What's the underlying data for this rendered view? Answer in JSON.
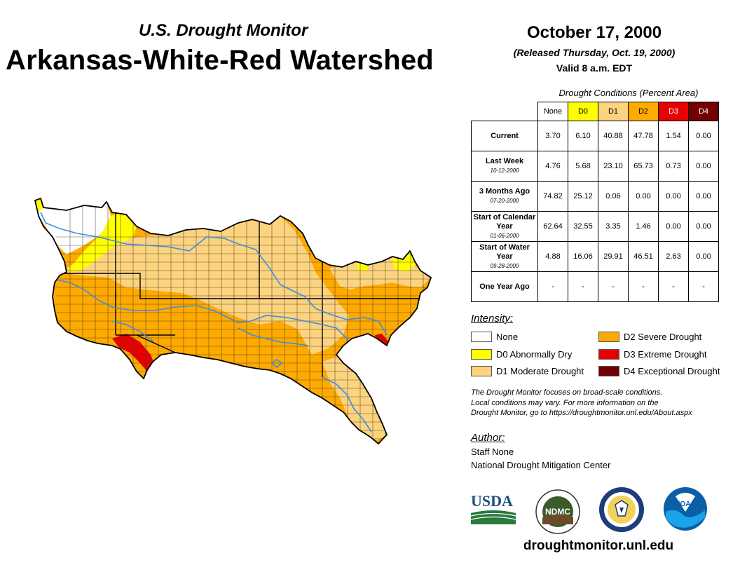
{
  "header": {
    "subtitle": "U.S. Drought Monitor",
    "title": "Arkansas-White-Red Watershed",
    "date": "October 17, 2000",
    "released": "(Released Thursday, Oct. 19, 2000)",
    "valid": "Valid 8 a.m. EDT"
  },
  "table": {
    "caption": "Drought Conditions (Percent Area)",
    "columns": [
      "None",
      "D0",
      "D1",
      "D2",
      "D3",
      "D4"
    ],
    "column_colors": [
      "#ffffff",
      "#ffff00",
      "#fcd37f",
      "#ffaa00",
      "#e60000",
      "#730000"
    ],
    "rows": [
      {
        "label": "Current",
        "date": "",
        "values": [
          "3.70",
          "6.10",
          "40.88",
          "47.78",
          "1.54",
          "0.00"
        ]
      },
      {
        "label": "Last Week",
        "date": "10-12-2000",
        "values": [
          "4.76",
          "5.68",
          "23.10",
          "65.73",
          "0.73",
          "0.00"
        ]
      },
      {
        "label": "3 Months Ago",
        "date": "07-20-2000",
        "values": [
          "74.82",
          "25.12",
          "0.06",
          "0.00",
          "0.00",
          "0.00"
        ]
      },
      {
        "label": "Start of Calendar Year",
        "date": "01-06-2000",
        "values": [
          "62.64",
          "32.55",
          "3.35",
          "1.46",
          "0.00",
          "0.00"
        ]
      },
      {
        "label": "Start of Water Year",
        "date": "09-28-2000",
        "values": [
          "4.88",
          "16.06",
          "29.91",
          "46.51",
          "2.63",
          "0.00"
        ]
      },
      {
        "label": "One Year Ago",
        "date": "",
        "values": [
          "-",
          "-",
          "-",
          "-",
          "-",
          "-"
        ]
      }
    ]
  },
  "legend": {
    "title": "Intensity:",
    "items": [
      {
        "label": "None",
        "color": "#ffffff"
      },
      {
        "label": "D0 Abnormally Dry",
        "color": "#ffff00"
      },
      {
        "label": "D1 Moderate Drought",
        "color": "#fcd37f"
      },
      {
        "label": "D2 Severe Drought",
        "color": "#ffaa00"
      },
      {
        "label": "D3 Extreme Drought",
        "color": "#e60000"
      },
      {
        "label": "D4 Exceptional Drought",
        "color": "#730000"
      }
    ]
  },
  "disclaimer": {
    "line1": "The Drought Monitor focuses on broad-scale conditions.",
    "line2": "Local conditions may vary. For more information on the",
    "line3": "Drought Monitor, go to https://droughtmonitor.unl.edu/About.aspx"
  },
  "author": {
    "title": "Author:",
    "name": "Staff None",
    "org": "National Drought Mitigation Center"
  },
  "logos": {
    "usda": "USDA",
    "ndmc": "NDMC",
    "noaa": "NOAA"
  },
  "website": "droughtmonitor.unl.edu",
  "colors": {
    "river": "#3a8ee0",
    "county_line": "#4a3a20",
    "state_line": "#000000"
  }
}
